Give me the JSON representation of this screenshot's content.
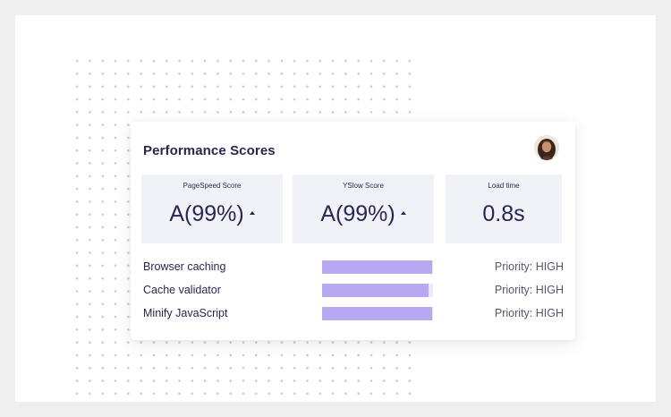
{
  "card": {
    "title": "Performance Scores"
  },
  "metrics": [
    {
      "label": "PageSpeed Score",
      "value": "A(99%)",
      "trend": "up"
    },
    {
      "label": "YSlow Score",
      "value": "A(99%)",
      "trend": "up"
    },
    {
      "label": "Load time",
      "value": "0.8s"
    }
  ],
  "recommendations": [
    {
      "label": "Browser caching",
      "priority": "Priority: HIGH",
      "bar_fill": 0.99
    },
    {
      "label": "Cache validator",
      "priority": "Priority: HIGH",
      "bar_fill": 0.96
    },
    {
      "label": "Minify JavaScript",
      "priority": "Priority: HIGH",
      "bar_fill": 0.99
    }
  ],
  "colors": {
    "title_text": "#2a2552",
    "metric_tile_bg": "#f1f2f8",
    "bar_fill": "#b7a8f1",
    "bar_track": "#ece9fb",
    "priority_text": "#55566a"
  },
  "icons": {
    "avatar": "user-avatar-photo",
    "trend": "caret-up-icon"
  }
}
